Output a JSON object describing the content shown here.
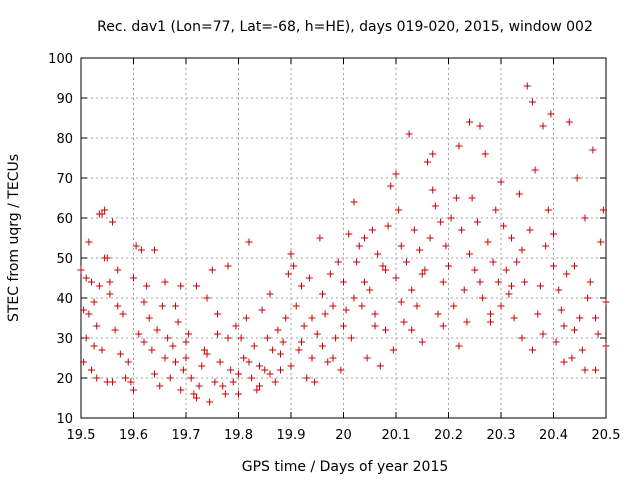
{
  "chart_data": {
    "type": "scatter",
    "title": "Rec. dav1 (Lon=77, Lat=-68, h=HE), days 019-020, 2015, window 002",
    "xlabel": "GPS time / Days of year 2015",
    "ylabel": "STEC from uqrg / TECUs",
    "xlim": [
      19.5,
      20.5
    ],
    "ylim": [
      10,
      100
    ],
    "x_ticks": [
      "19.5",
      "19.6",
      "19.7",
      "19.8",
      "19.9",
      "20",
      "20.1",
      "20.2",
      "20.3",
      "20.4",
      "20.5"
    ],
    "y_ticks": [
      "10",
      "20",
      "30",
      "40",
      "50",
      "60",
      "70",
      "80",
      "90",
      "100"
    ],
    "grid": true,
    "marker": "+",
    "color": "#cc0000",
    "series": [
      {
        "points": [
          [
            19.5,
            47
          ],
          [
            19.505,
            37
          ],
          [
            19.51,
            45
          ],
          [
            19.515,
            54
          ],
          [
            19.52,
            44
          ],
          [
            19.525,
            28
          ],
          [
            19.53,
            33
          ],
          [
            19.535,
            61
          ],
          [
            19.54,
            61
          ],
          [
            19.545,
            62
          ],
          [
            19.55,
            50
          ],
          [
            19.555,
            44
          ],
          [
            19.56,
            59
          ],
          [
            19.505,
            24
          ],
          [
            19.51,
            30
          ],
          [
            19.52,
            22
          ],
          [
            19.53,
            20
          ],
          [
            19.54,
            27
          ],
          [
            19.55,
            19
          ],
          [
            19.56,
            19
          ],
          [
            19.515,
            36
          ],
          [
            19.525,
            39
          ],
          [
            19.535,
            43
          ],
          [
            19.545,
            50
          ],
          [
            19.555,
            41
          ],
          [
            19.565,
            32
          ],
          [
            19.57,
            38
          ],
          [
            19.575,
            26
          ],
          [
            19.58,
            36
          ],
          [
            19.585,
            20
          ],
          [
            19.59,
            24
          ],
          [
            19.595,
            19
          ],
          [
            19.6,
            17
          ],
          [
            19.605,
            53
          ],
          [
            19.61,
            31
          ],
          [
            19.615,
            52
          ],
          [
            19.62,
            39
          ],
          [
            19.625,
            43
          ],
          [
            19.63,
            35
          ],
          [
            19.635,
            27
          ],
          [
            19.64,
            52
          ],
          [
            19.645,
            32
          ],
          [
            19.65,
            18
          ],
          [
            19.655,
            38
          ],
          [
            19.66,
            44
          ],
          [
            19.665,
            30
          ],
          [
            19.67,
            20
          ],
          [
            19.675,
            28
          ],
          [
            19.68,
            24
          ],
          [
            19.685,
            34
          ],
          [
            19.69,
            17
          ],
          [
            19.695,
            22
          ],
          [
            19.7,
            25
          ],
          [
            19.57,
            47
          ],
          [
            19.6,
            45
          ],
          [
            19.62,
            29
          ],
          [
            19.64,
            21
          ],
          [
            19.66,
            25
          ],
          [
            19.68,
            38
          ],
          [
            19.69,
            43
          ],
          [
            19.7,
            29
          ],
          [
            19.705,
            31
          ],
          [
            19.71,
            20
          ],
          [
            19.715,
            16
          ],
          [
            19.72,
            15
          ],
          [
            19.725,
            18
          ],
          [
            19.73,
            23
          ],
          [
            19.735,
            27
          ],
          [
            19.74,
            40
          ],
          [
            19.745,
            14
          ],
          [
            19.75,
            47
          ],
          [
            19.755,
            19
          ],
          [
            19.76,
            31
          ],
          [
            19.765,
            24
          ],
          [
            19.77,
            18
          ],
          [
            19.775,
            16
          ],
          [
            19.78,
            48
          ],
          [
            19.785,
            22
          ],
          [
            19.79,
            19
          ],
          [
            19.795,
            33
          ],
          [
            19.8,
            16
          ],
          [
            19.805,
            30
          ],
          [
            19.81,
            25
          ],
          [
            19.815,
            35
          ],
          [
            19.82,
            54
          ],
          [
            19.825,
            20
          ],
          [
            19.83,
            28
          ],
          [
            19.835,
            17
          ],
          [
            19.84,
            23
          ],
          [
            19.845,
            37
          ],
          [
            19.85,
            22
          ],
          [
            19.855,
            30
          ],
          [
            19.86,
            41
          ],
          [
            19.865,
            27
          ],
          [
            19.87,
            19
          ],
          [
            19.875,
            32
          ],
          [
            19.88,
            22
          ],
          [
            19.885,
            29
          ],
          [
            19.89,
            35
          ],
          [
            19.895,
            46
          ],
          [
            19.9,
            51
          ],
          [
            19.72,
            43
          ],
          [
            19.74,
            26
          ],
          [
            19.76,
            36
          ],
          [
            19.78,
            30
          ],
          [
            19.8,
            21
          ],
          [
            19.82,
            24
          ],
          [
            19.84,
            18
          ],
          [
            19.86,
            21
          ],
          [
            19.88,
            26
          ],
          [
            19.9,
            23
          ],
          [
            19.905,
            48
          ],
          [
            19.91,
            38
          ],
          [
            19.915,
            27
          ],
          [
            19.92,
            43
          ],
          [
            19.925,
            33
          ],
          [
            19.93,
            20
          ],
          [
            19.935,
            45
          ],
          [
            19.94,
            25
          ],
          [
            19.945,
            19
          ],
          [
            19.95,
            31
          ],
          [
            19.955,
            55
          ],
          [
            19.96,
            41
          ],
          [
            19.965,
            36
          ],
          [
            19.97,
            24
          ],
          [
            19.975,
            46
          ],
          [
            19.98,
            38
          ],
          [
            19.985,
            30
          ],
          [
            19.99,
            49
          ],
          [
            19.995,
            22
          ],
          [
            20.0,
            44
          ],
          [
            19.92,
            29
          ],
          [
            19.94,
            35
          ],
          [
            19.96,
            28
          ],
          [
            19.98,
            25
          ],
          [
            20.0,
            33
          ],
          [
            20.005,
            37
          ],
          [
            20.01,
            56
          ],
          [
            20.015,
            30
          ],
          [
            20.02,
            64
          ],
          [
            20.025,
            49
          ],
          [
            20.03,
            53
          ],
          [
            20.035,
            38
          ],
          [
            20.04,
            55
          ],
          [
            20.045,
            25
          ],
          [
            20.05,
            42
          ],
          [
            20.055,
            57
          ],
          [
            20.06,
            36
          ],
          [
            20.065,
            51
          ],
          [
            20.07,
            23
          ],
          [
            20.075,
            48
          ],
          [
            20.08,
            32
          ],
          [
            20.085,
            58
          ],
          [
            20.09,
            68
          ],
          [
            20.095,
            27
          ],
          [
            20.1,
            45
          ],
          [
            20.02,
            40
          ],
          [
            20.04,
            44
          ],
          [
            20.06,
            33
          ],
          [
            20.08,
            47
          ],
          [
            20.1,
            71
          ],
          [
            20.105,
            62
          ],
          [
            20.11,
            53
          ],
          [
            20.115,
            34
          ],
          [
            20.12,
            49
          ],
          [
            20.125,
            81
          ],
          [
            20.13,
            42
          ],
          [
            20.135,
            57
          ],
          [
            20.14,
            38
          ],
          [
            20.145,
            52
          ],
          [
            20.15,
            29
          ],
          [
            20.155,
            47
          ],
          [
            20.16,
            74
          ],
          [
            20.165,
            55
          ],
          [
            20.17,
            67
          ],
          [
            20.175,
            63
          ],
          [
            20.18,
            36
          ],
          [
            20.185,
            59
          ],
          [
            20.19,
            44
          ],
          [
            20.195,
            53
          ],
          [
            20.2,
            48
          ],
          [
            20.11,
            39
          ],
          [
            20.13,
            32
          ],
          [
            20.15,
            46
          ],
          [
            20.17,
            76
          ],
          [
            20.19,
            33
          ],
          [
            20.205,
            60
          ],
          [
            20.21,
            38
          ],
          [
            20.215,
            65
          ],
          [
            20.22,
            78
          ],
          [
            20.225,
            57
          ],
          [
            20.23,
            42
          ],
          [
            20.235,
            34
          ],
          [
            20.24,
            84
          ],
          [
            20.245,
            65
          ],
          [
            20.25,
            47
          ],
          [
            20.255,
            59
          ],
          [
            20.26,
            83
          ],
          [
            20.265,
            40
          ],
          [
            20.27,
            76
          ],
          [
            20.275,
            54
          ],
          [
            20.28,
            36
          ],
          [
            20.285,
            49
          ],
          [
            20.29,
            62
          ],
          [
            20.295,
            44
          ],
          [
            20.3,
            69
          ],
          [
            20.22,
            28
          ],
          [
            20.24,
            51
          ],
          [
            20.26,
            44
          ],
          [
            20.28,
            34
          ],
          [
            20.3,
            38
          ],
          [
            20.305,
            58
          ],
          [
            20.31,
            47
          ],
          [
            20.315,
            41
          ],
          [
            20.32,
            55
          ],
          [
            20.325,
            35
          ],
          [
            20.33,
            49
          ],
          [
            20.335,
            66
          ],
          [
            20.34,
            30
          ],
          [
            20.345,
            44
          ],
          [
            20.35,
            93
          ],
          [
            20.355,
            57
          ],
          [
            20.36,
            89
          ],
          [
            20.365,
            72
          ],
          [
            20.37,
            36
          ],
          [
            20.375,
            43
          ],
          [
            20.38,
            83
          ],
          [
            20.385,
            53
          ],
          [
            20.39,
            62
          ],
          [
            20.395,
            86
          ],
          [
            20.4,
            48
          ],
          [
            20.32,
            43
          ],
          [
            20.34,
            52
          ],
          [
            20.36,
            27
          ],
          [
            20.38,
            31
          ],
          [
            20.4,
            56
          ],
          [
            20.405,
            29
          ],
          [
            20.41,
            42
          ],
          [
            20.415,
            37
          ],
          [
            20.42,
            33
          ],
          [
            20.425,
            46
          ],
          [
            20.43,
            84
          ],
          [
            20.435,
            25
          ],
          [
            20.44,
            48
          ],
          [
            20.445,
            70
          ],
          [
            20.45,
            35
          ],
          [
            20.455,
            27
          ],
          [
            20.46,
            60
          ],
          [
            20.465,
            40
          ],
          [
            20.47,
            44
          ],
          [
            20.475,
            77
          ],
          [
            20.48,
            22
          ],
          [
            20.485,
            31
          ],
          [
            20.49,
            54
          ],
          [
            20.495,
            62
          ],
          [
            20.5,
            39
          ],
          [
            20.42,
            24
          ],
          [
            20.44,
            32
          ],
          [
            20.46,
            22
          ],
          [
            20.48,
            35
          ],
          [
            20.5,
            28
          ]
        ]
      }
    ]
  }
}
